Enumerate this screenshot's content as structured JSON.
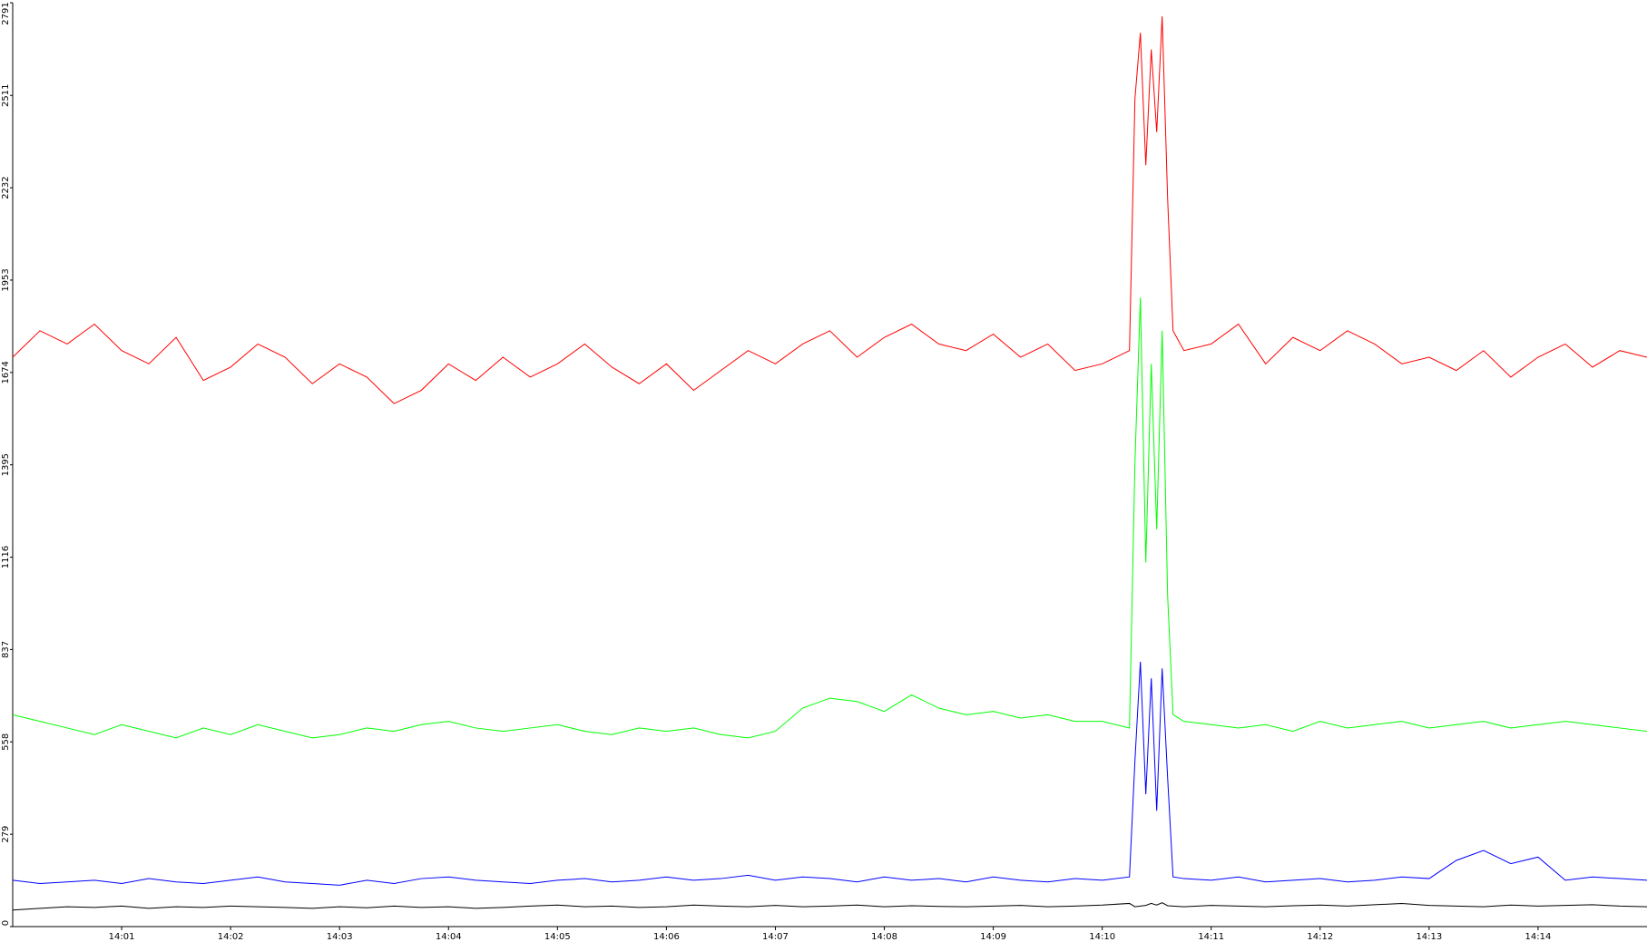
{
  "chart_data": {
    "type": "line",
    "x": [
      840,
      840.25,
      840.5,
      840.75,
      841,
      841.25,
      841.5,
      841.75,
      842,
      842.25,
      842.5,
      842.75,
      843,
      843.25,
      843.5,
      843.75,
      844,
      844.25,
      844.5,
      844.75,
      845,
      845.25,
      845.5,
      845.75,
      846,
      846.25,
      846.5,
      846.75,
      847,
      847.25,
      847.5,
      847.75,
      848,
      848.25,
      848.5,
      848.75,
      849,
      849.25,
      849.5,
      849.75,
      850,
      850.25,
      850.3,
      850.35,
      850.4,
      850.45,
      850.5,
      850.55,
      850.6,
      850.65,
      850.75,
      851,
      851.25,
      851.5,
      851.75,
      852,
      852.25,
      852.5,
      852.75,
      853,
      853.25,
      853.5,
      853.75,
      854,
      854.25,
      854.5,
      854.75,
      855
    ],
    "series": [
      {
        "name": "red",
        "color": "#ff0000",
        "values": [
          1720,
          1800,
          1760,
          1820,
          1740,
          1700,
          1780,
          1650,
          1690,
          1760,
          1720,
          1640,
          1700,
          1660,
          1580,
          1620,
          1700,
          1650,
          1720,
          1660,
          1700,
          1760,
          1690,
          1640,
          1700,
          1620,
          1680,
          1740,
          1700,
          1760,
          1800,
          1720,
          1780,
          1820,
          1760,
          1740,
          1790,
          1720,
          1760,
          1680,
          1700,
          1740,
          2500,
          2700,
          2300,
          2650,
          2400,
          2750,
          2200,
          1800,
          1740,
          1760,
          1820,
          1700,
          1780,
          1740,
          1800,
          1760,
          1700,
          1720,
          1680,
          1740,
          1660,
          1720,
          1760,
          1690,
          1740,
          1720
        ]
      },
      {
        "name": "green",
        "color": "#00ff00",
        "values": [
          640,
          620,
          600,
          580,
          610,
          590,
          570,
          600,
          580,
          610,
          590,
          570,
          580,
          600,
          590,
          610,
          620,
          600,
          590,
          600,
          610,
          590,
          580,
          600,
          590,
          600,
          580,
          570,
          590,
          660,
          690,
          680,
          650,
          700,
          660,
          640,
          650,
          630,
          640,
          620,
          620,
          600,
          1400,
          1900,
          1100,
          1700,
          1200,
          1800,
          1000,
          640,
          620,
          610,
          600,
          610,
          590,
          620,
          600,
          610,
          620,
          600,
          610,
          620,
          600,
          610,
          620,
          610,
          600,
          590
        ]
      },
      {
        "name": "blue",
        "color": "#0000ff",
        "values": [
          140,
          130,
          135,
          140,
          130,
          145,
          135,
          130,
          140,
          150,
          135,
          130,
          125,
          140,
          130,
          145,
          150,
          140,
          135,
          130,
          140,
          145,
          135,
          140,
          150,
          140,
          145,
          155,
          140,
          150,
          145,
          135,
          150,
          140,
          145,
          135,
          150,
          140,
          135,
          145,
          140,
          150,
          500,
          800,
          400,
          750,
          350,
          780,
          450,
          150,
          145,
          140,
          150,
          135,
          140,
          145,
          135,
          140,
          150,
          145,
          200,
          230,
          190,
          210,
          140,
          150,
          145,
          140
        ]
      },
      {
        "name": "black",
        "color": "#000000",
        "values": [
          50,
          55,
          60,
          58,
          62,
          55,
          60,
          58,
          62,
          60,
          58,
          55,
          60,
          57,
          62,
          58,
          60,
          55,
          58,
          62,
          65,
          60,
          62,
          58,
          60,
          65,
          62,
          60,
          64,
          60,
          62,
          65,
          60,
          63,
          61,
          60,
          62,
          64,
          60,
          62,
          65,
          70,
          60,
          62,
          64,
          70,
          65,
          72,
          63,
          62,
          60,
          64,
          62,
          60,
          63,
          65,
          62,
          66,
          70,
          64,
          62,
          60,
          65,
          62,
          64,
          66,
          62,
          60
        ]
      }
    ],
    "xlim": [
      840,
      855
    ],
    "xticks": [
      {
        "value": 841,
        "label": "14:01"
      },
      {
        "value": 842,
        "label": "14:02"
      },
      {
        "value": 843,
        "label": "14:03"
      },
      {
        "value": 844,
        "label": "14:04"
      },
      {
        "value": 845,
        "label": "14:05"
      },
      {
        "value": 846,
        "label": "14:06"
      },
      {
        "value": 847,
        "label": "14:07"
      },
      {
        "value": 848,
        "label": "14:08"
      },
      {
        "value": 849,
        "label": "14:09"
      },
      {
        "value": 850,
        "label": "14:10"
      },
      {
        "value": 851,
        "label": "14:11"
      },
      {
        "value": 852,
        "label": "14:12"
      },
      {
        "value": 853,
        "label": "14:13"
      },
      {
        "value": 854,
        "label": "14:14"
      }
    ],
    "ylim": [
      0,
      2791
    ],
    "yticks": [
      0,
      279,
      558,
      837,
      1116,
      1395,
      1674,
      1953,
      2232,
      2511,
      2791
    ]
  }
}
